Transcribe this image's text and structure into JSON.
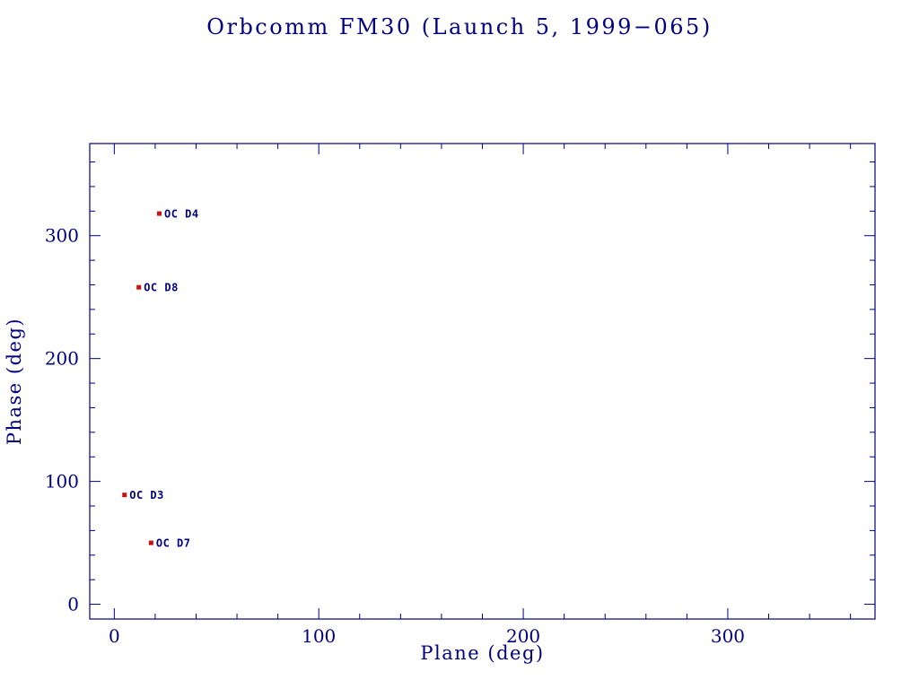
{
  "chart_data": {
    "type": "scatter",
    "title": "Orbcomm FM30 (Launch 5, 1999−065)",
    "xlabel": "Plane (deg)",
    "ylabel": "Phase (deg)",
    "xlim": [
      -12,
      372
    ],
    "ylim": [
      -12,
      375
    ],
    "x_major_ticks": [
      0,
      100,
      200,
      300
    ],
    "y_major_ticks": [
      0,
      100,
      200,
      300
    ],
    "minor_tick_interval": 20,
    "grid": false,
    "legend": "none",
    "points": [
      {
        "label": "OC D4",
        "x": 22,
        "y": 318
      },
      {
        "label": "OC D8",
        "x": 12,
        "y": 258
      },
      {
        "label": "OC D3",
        "x": 5,
        "y": 89
      },
      {
        "label": "OC D7",
        "x": 18,
        "y": 50
      }
    ],
    "marker": {
      "shape": "square",
      "color": "#cc1111",
      "size": 5
    },
    "colors": {
      "axis": "#000080",
      "text": "#000080",
      "label": "#000080"
    }
  }
}
